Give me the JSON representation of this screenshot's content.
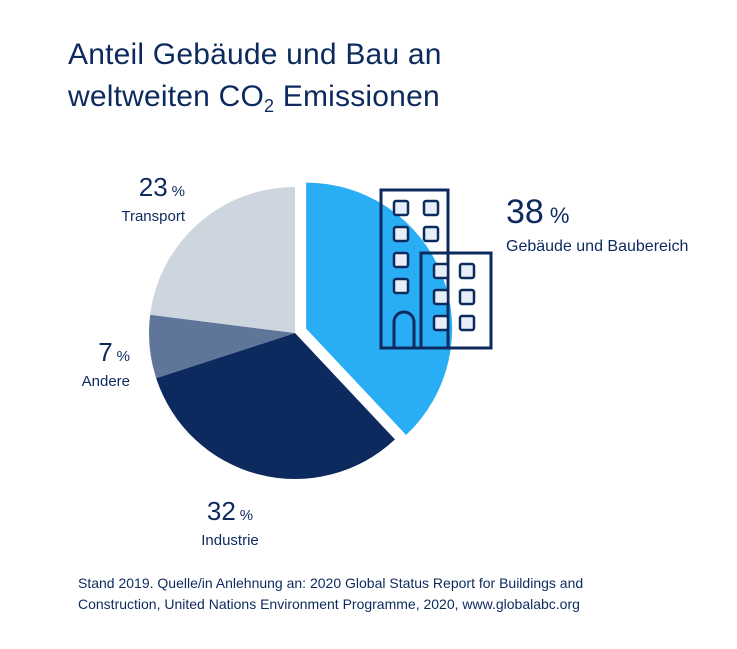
{
  "title_line1": "Anteil Gebäude und Bau an",
  "title_line2_pre": "weltweiten CO",
  "title_line2_sub": "2",
  "title_line2_post": " Emissionen",
  "percent_sign": "%",
  "chart_data": {
    "type": "pie",
    "title": "Anteil Gebäude und Bau an weltweiten CO2 Emissionen",
    "categories": [
      "Gebäude und Baubereich",
      "Industrie",
      "Andere",
      "Transport"
    ],
    "values": [
      38,
      32,
      7,
      23
    ],
    "value_labels": [
      "38",
      "32",
      "7",
      "23"
    ],
    "colors": [
      "#29aef5",
      "#0d2a5e",
      "#5f7599",
      "#cdd5df"
    ],
    "exploded": [
      true,
      false,
      false,
      false
    ],
    "start_angle_deg": 0,
    "direction": "clockwise"
  },
  "icon": {
    "name": "buildings-icon",
    "stroke_color": "#0d2a5e",
    "window_color": "#e8eef7"
  },
  "footer": {
    "line1": "Stand 2019. Quelle/in Anlehnung an: 2020 Global Status Report for Buildings and",
    "line2": "Construction, United Nations Environment Programme, 2020, www.globalabc.org"
  }
}
